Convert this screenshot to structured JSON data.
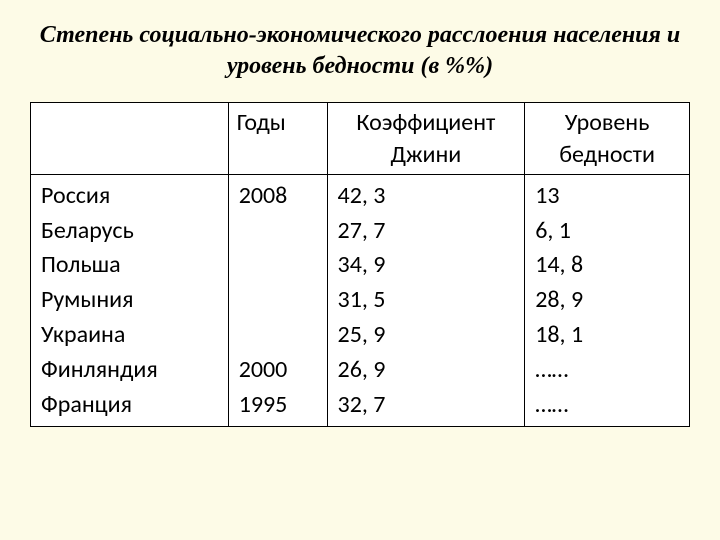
{
  "title": "Степень социально-экономического расслоения населения и уровень бедности (в %%)",
  "table": {
    "headers": {
      "country": "",
      "year": "Годы",
      "gini": "Коэффициент Джини",
      "poverty": "Уровень бедности"
    },
    "countries": "Россия\nБеларусь\nПольша\nРумыния\nУкраина\nФинляндия\nФранция",
    "years": "2008\n\n\n\n\n2000\n1995",
    "gini_values": "42, 3\n27, 7\n34, 9\n31, 5\n25, 9\n26, 9\n32, 7",
    "poverty_values": "13\n6, 1\n14, 8\n28, 9\n18, 1\n……\n……"
  },
  "style": {
    "background_color": "#fdfbe7",
    "table_background": "#ffffff",
    "border_color": "#000000",
    "title_fontsize": 24,
    "table_fontsize": 24
  }
}
